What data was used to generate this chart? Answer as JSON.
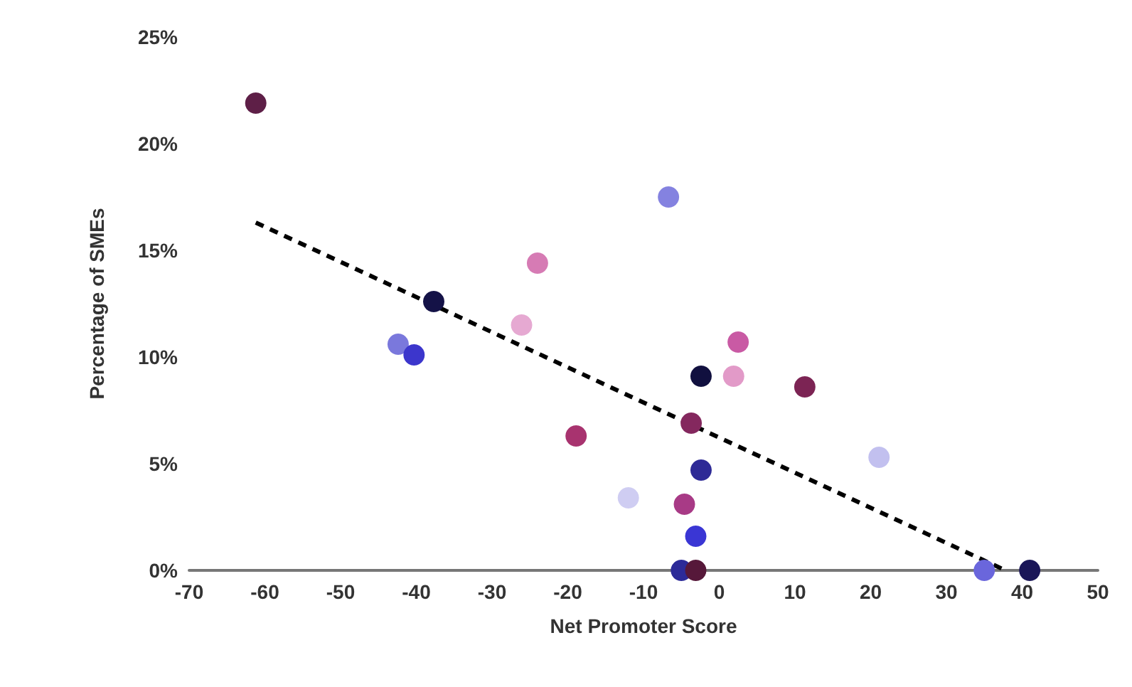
{
  "chart_data": {
    "type": "scatter",
    "xlabel": "Net Promoter Score",
    "ylabel": "Percentage of SMEs",
    "xlim": [
      -70,
      50
    ],
    "xticks": [
      -70,
      -60,
      -50,
      -40,
      -30,
      -20,
      -10,
      0,
      10,
      20,
      30,
      40,
      50
    ],
    "ylim": [
      0,
      25
    ],
    "yticks": [
      {
        "value": 0,
        "label": "0%"
      },
      {
        "value": 5,
        "label": "5%"
      },
      {
        "value": 10,
        "label": "10%"
      },
      {
        "value": 15,
        "label": "15%"
      },
      {
        "value": 20,
        "label": "20%"
      },
      {
        "value": 25,
        "label": "25%"
      }
    ],
    "grid": false,
    "marker": "circle",
    "series": [
      {
        "x": [
          -61.2,
          -24,
          -37.7,
          -26.1,
          -42.4,
          -40.3,
          -18.9,
          -6.7,
          2.5,
          -2.4,
          1.9,
          11.3,
          -3.7,
          21.1,
          -2.4,
          -12,
          -4.6,
          -3.1,
          -5,
          -3.1,
          35,
          41
        ],
        "values": [
          21.9,
          14.4,
          12.6,
          11.5,
          10.6,
          10.1,
          6.3,
          17.5,
          10.7,
          9.1,
          9.1,
          8.6,
          6.9,
          5.3,
          4.7,
          3.4,
          3.1,
          1.6,
          0,
          0,
          0,
          0
        ],
        "colors": [
          "#5e1f47",
          "#d67bb4",
          "#141247",
          "#e6a9d2",
          "#7a78dc",
          "#3c36cc",
          "#a8336f",
          "#8482e0",
          "#c95aa4",
          "#11103f",
          "#e29ac8",
          "#7c2454",
          "#84285e",
          "#c2c0ef",
          "#2e2a96",
          "#cfcdf2",
          "#a83a86",
          "#3a36d4",
          "#2c2a98",
          "#56183a",
          "#6a66dc",
          "#1a1658"
        ]
      },
      {
        "type": "line",
        "x": [
          -61.2,
          37.8
        ],
        "values": [
          16.3,
          0
        ],
        "color": "#000000",
        "line_style": "dashed",
        "marker": "none"
      }
    ]
  }
}
